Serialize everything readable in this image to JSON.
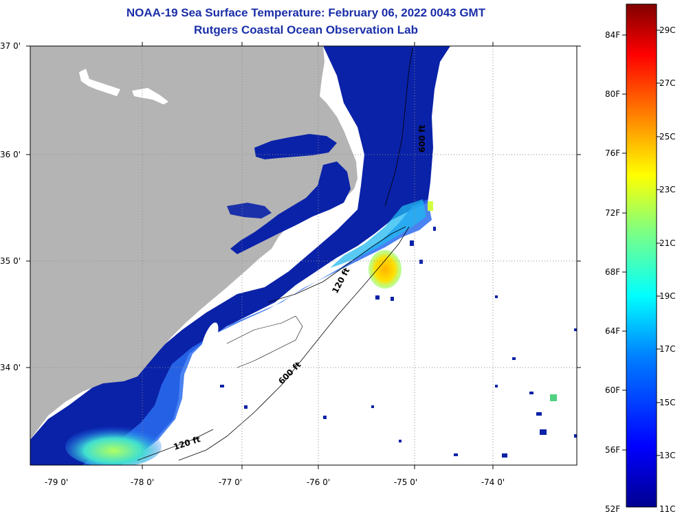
{
  "title": {
    "line1": "NOAA-19 Sea Surface Temperature:  February 06, 2022 0043 GMT",
    "line2": "Rutgers Coastal Ocean Observation Lab"
  },
  "map": {
    "lat_ticks": [
      "37 0'",
      "36 0'",
      "35 0'",
      "34 0'"
    ],
    "lon_ticks": [
      "-79 0'",
      "-78 0'",
      "-77 0'",
      "-76 0'",
      "-75 0'",
      "-74 0'"
    ],
    "contour_labels": [
      "600 ft",
      "120 ft",
      "600 ft",
      "120 ft"
    ],
    "colors": {
      "land": "#b4b4b4",
      "ocean_cold": "#0a22a8",
      "no_data": "#ffffff"
    }
  },
  "colorbar": {
    "fahrenheit": [
      "84F",
      "80F",
      "76F",
      "72F",
      "68F",
      "64F",
      "60F",
      "56F",
      "52F"
    ],
    "celsius": [
      "29C",
      "27C",
      "25C",
      "23C",
      "21C",
      "19C",
      "17C",
      "15C",
      "13C",
      "11C"
    ],
    "colormap": [
      "#00008f",
      "#0000ff",
      "#0080ff",
      "#00ffff",
      "#80ff80",
      "#ffff00",
      "#ff8000",
      "#ff0000",
      "#800000"
    ]
  }
}
